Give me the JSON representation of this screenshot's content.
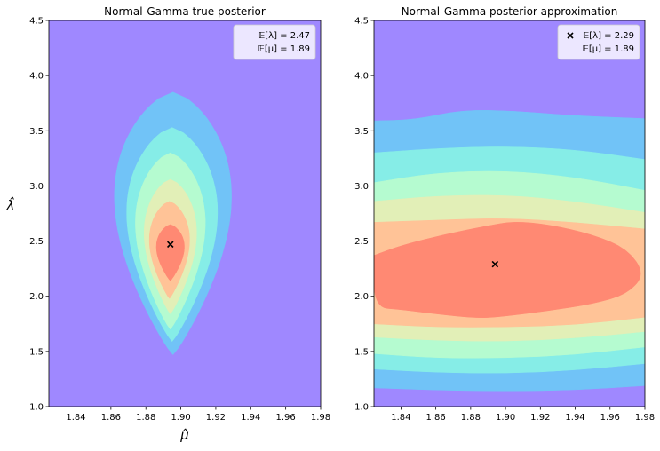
{
  "chart_data": [
    {
      "type": "contour",
      "title": "Normal-Gamma true posterior",
      "xlabel": "μ̂",
      "ylabel": "λ̂",
      "xlim": [
        1.8245,
        1.98
      ],
      "ylim": [
        1.0,
        4.5
      ],
      "xticks": [
        "1.84",
        "1.86",
        "1.88",
        "1.90",
        "1.92",
        "1.94",
        "1.96",
        "1.98"
      ],
      "yticks": [
        "1.0",
        "1.5",
        "2.0",
        "2.5",
        "3.0",
        "3.5",
        "4.0",
        "4.5"
      ],
      "background_color": "#9f88ff",
      "marker": {
        "x": 1.894,
        "y": 2.47,
        "symbol": "x"
      },
      "legend": {
        "position": "upper right",
        "entries": [
          "𝔼[λ] = 2.47",
          "𝔼[μ] = 1.89"
        ]
      },
      "contour_levels": [
        {
          "color": "#71c3f7",
          "x_min": 1.862,
          "x_max": 1.929,
          "y_min": 1.47,
          "y_max": 3.85
        },
        {
          "color": "#86ede7",
          "x_min": 1.869,
          "x_max": 1.921,
          "y_min": 1.59,
          "y_max": 3.53
        },
        {
          "color": "#b5fbd0",
          "x_min": 1.874,
          "x_max": 1.914,
          "y_min": 1.7,
          "y_max": 3.3
        },
        {
          "color": "#e2efb7",
          "x_min": 1.879,
          "x_max": 1.909,
          "y_min": 1.84,
          "y_max": 3.06
        },
        {
          "color": "#ffc397",
          "x_min": 1.882,
          "x_max": 1.905,
          "y_min": 1.98,
          "y_max": 2.86
        },
        {
          "color": "#ff8973",
          "x_min": 1.886,
          "x_max": 1.902,
          "y_min": 2.14,
          "y_max": 2.65
        }
      ]
    },
    {
      "type": "contour",
      "title": "Normal-Gamma posterior approximation",
      "xlabel": "",
      "ylabel": "",
      "xlim": [
        1.8245,
        1.98
      ],
      "ylim": [
        1.0,
        4.5
      ],
      "xticks": [
        "1.84",
        "1.86",
        "1.88",
        "1.90",
        "1.92",
        "1.94",
        "1.96",
        "1.98"
      ],
      "yticks": [
        "1.0",
        "1.5",
        "2.0",
        "2.5",
        "3.0",
        "3.5",
        "4.0",
        "4.5"
      ],
      "background_color": "#9f88ff",
      "marker": {
        "x": 1.894,
        "y": 2.29,
        "symbol": "x"
      },
      "legend": {
        "position": "upper right",
        "entries": [
          "𝔼[λ] = 2.29",
          "𝔼[μ] = 1.89"
        ]
      },
      "contour_bands": [
        {
          "color": "#71c3f7",
          "top": [
            [
              1.8245,
              3.59
            ],
            [
              1.848,
              3.6
            ],
            [
              1.875,
              3.69
            ],
            [
              1.905,
              3.68
            ],
            [
              1.935,
              3.64
            ],
            [
              1.98,
              3.61
            ]
          ],
          "bottom": [
            [
              1.8245,
              1.17
            ],
            [
              1.86,
              1.15
            ],
            [
              1.9,
              1.14
            ],
            [
              1.94,
              1.15
            ],
            [
              1.98,
              1.19
            ]
          ]
        },
        {
          "color": "#86ede7",
          "top": [
            [
              1.8245,
              3.3
            ],
            [
              1.86,
              3.34
            ],
            [
              1.9,
              3.36
            ],
            [
              1.94,
              3.33
            ],
            [
              1.98,
              3.24
            ]
          ],
          "bottom": [
            [
              1.8245,
              1.34
            ],
            [
              1.86,
              1.31
            ],
            [
              1.9,
              1.3
            ],
            [
              1.94,
              1.33
            ],
            [
              1.98,
              1.39
            ]
          ]
        },
        {
          "color": "#b5fbd0",
          "top": [
            [
              1.8245,
              3.03
            ],
            [
              1.86,
              3.12
            ],
            [
              1.9,
              3.14
            ],
            [
              1.94,
              3.08
            ],
            [
              1.98,
              2.96
            ]
          ],
          "bottom": [
            [
              1.8245,
              1.48
            ],
            [
              1.86,
              1.44
            ],
            [
              1.9,
              1.44
            ],
            [
              1.94,
              1.47
            ],
            [
              1.98,
              1.54
            ]
          ]
        },
        {
          "color": "#e2efb7",
          "top": [
            [
              1.8245,
              2.86
            ],
            [
              1.86,
              2.91
            ],
            [
              1.9,
              2.92
            ],
            [
              1.94,
              2.86
            ],
            [
              1.98,
              2.76
            ]
          ],
          "bottom": [
            [
              1.8245,
              1.63
            ],
            [
              1.86,
              1.6
            ],
            [
              1.9,
              1.59
            ],
            [
              1.94,
              1.62
            ],
            [
              1.98,
              1.68
            ]
          ]
        },
        {
          "color": "#ffc397",
          "top": [
            [
              1.8245,
              2.67
            ],
            [
              1.86,
              2.69
            ],
            [
              1.9,
              2.71
            ],
            [
              1.94,
              2.67
            ],
            [
              1.98,
              2.61
            ]
          ],
          "bottom": [
            [
              1.8245,
              1.75
            ],
            [
              1.86,
              1.72
            ],
            [
              1.9,
              1.72
            ],
            [
              1.94,
              1.74
            ],
            [
              1.98,
              1.81
            ]
          ]
        }
      ],
      "inner_region": {
        "color": "#ff8973",
        "outline": [
          [
            1.8245,
            2.37
          ],
          [
            1.84,
            2.46
          ],
          [
            1.865,
            2.56
          ],
          [
            1.89,
            2.64
          ],
          [
            1.905,
            2.68
          ],
          [
            1.925,
            2.65
          ],
          [
            1.95,
            2.56
          ],
          [
            1.97,
            2.43
          ],
          [
            1.98,
            2.2
          ],
          [
            1.97,
            2.02
          ],
          [
            1.95,
            1.93
          ],
          [
            1.925,
            1.87
          ],
          [
            1.9,
            1.82
          ],
          [
            1.885,
            1.8
          ],
          [
            1.86,
            1.84
          ],
          [
            1.84,
            1.88
          ],
          [
            1.8245,
            1.9
          ]
        ]
      }
    }
  ]
}
